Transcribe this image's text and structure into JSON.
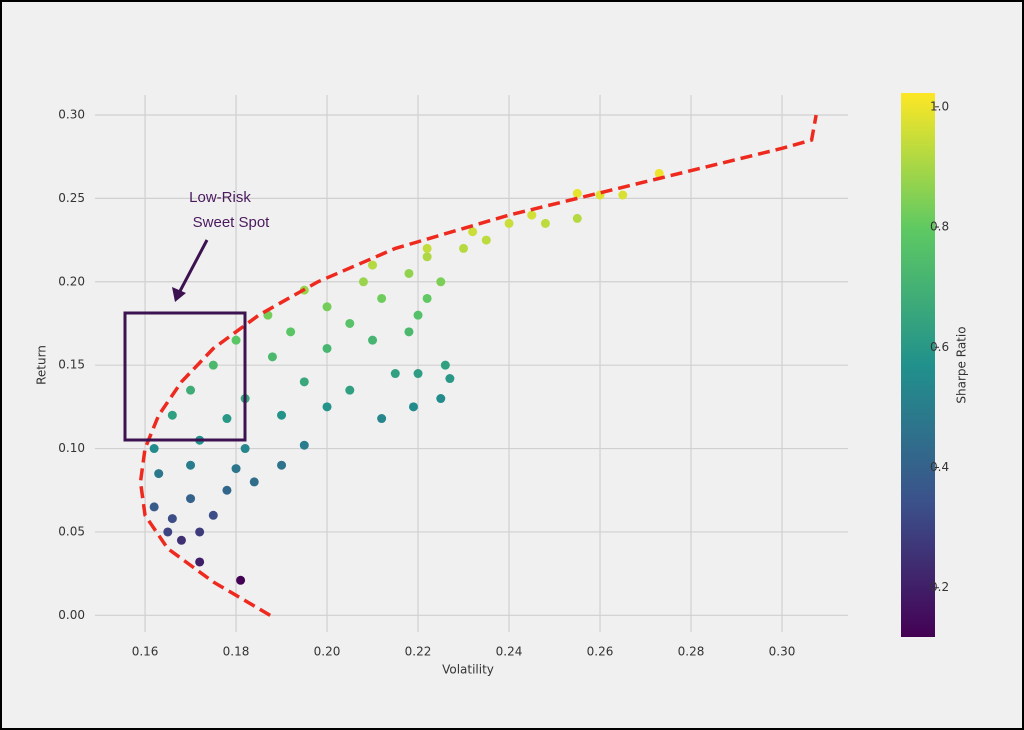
{
  "chart_data": {
    "type": "scatter",
    "xlabel": "Volatility",
    "ylabel": "Return",
    "x": [
      0.181,
      0.172,
      0.168,
      0.165,
      0.172,
      0.166,
      0.175,
      0.162,
      0.17,
      0.178,
      0.184,
      0.163,
      0.17,
      0.18,
      0.19,
      0.162,
      0.172,
      0.182,
      0.195,
      0.166,
      0.178,
      0.19,
      0.2,
      0.212,
      0.17,
      0.182,
      0.195,
      0.205,
      0.215,
      0.219,
      0.225,
      0.227,
      0.175,
      0.188,
      0.2,
      0.21,
      0.22,
      0.226,
      0.18,
      0.192,
      0.205,
      0.218,
      0.22,
      0.187,
      0.2,
      0.212,
      0.222,
      0.195,
      0.208,
      0.218,
      0.225,
      0.21,
      0.222,
      0.23,
      0.222,
      0.232,
      0.24,
      0.245,
      0.235,
      0.248,
      0.255,
      0.255,
      0.26,
      0.265,
      0.273
    ],
    "values": [
      0.021,
      0.032,
      0.045,
      0.05,
      0.05,
      0.058,
      0.06,
      0.065,
      0.07,
      0.075,
      0.08,
      0.085,
      0.09,
      0.088,
      0.09,
      0.1,
      0.105,
      0.1,
      0.102,
      0.12,
      0.118,
      0.12,
      0.125,
      0.118,
      0.135,
      0.13,
      0.14,
      0.135,
      0.145,
      0.125,
      0.13,
      0.142,
      0.15,
      0.155,
      0.16,
      0.165,
      0.145,
      0.15,
      0.165,
      0.17,
      0.175,
      0.17,
      0.18,
      0.18,
      0.185,
      0.19,
      0.19,
      0.195,
      0.2,
      0.205,
      0.2,
      0.21,
      0.215,
      0.22,
      0.22,
      0.23,
      0.235,
      0.24,
      0.225,
      0.235,
      0.238,
      0.253,
      0.252,
      0.252,
      0.265
    ],
    "sharpe": [
      0.12,
      0.2,
      0.25,
      0.3,
      0.28,
      0.33,
      0.33,
      0.38,
      0.4,
      0.42,
      0.44,
      0.48,
      0.5,
      0.47,
      0.46,
      0.55,
      0.57,
      0.53,
      0.5,
      0.63,
      0.6,
      0.58,
      0.58,
      0.53,
      0.68,
      0.65,
      0.66,
      0.63,
      0.63,
      0.55,
      0.55,
      0.6,
      0.73,
      0.73,
      0.72,
      0.71,
      0.62,
      0.63,
      0.78,
      0.78,
      0.77,
      0.73,
      0.76,
      0.83,
      0.83,
      0.82,
      0.8,
      0.88,
      0.88,
      0.87,
      0.84,
      0.92,
      0.91,
      0.92,
      0.94,
      0.95,
      0.95,
      0.96,
      0.93,
      0.93,
      0.92,
      0.99,
      0.98,
      0.97,
      1.0
    ],
    "line": {
      "color": "#ee2a1f",
      "x": [
        0.1875,
        0.175,
        0.165,
        0.16,
        0.159,
        0.16,
        0.163,
        0.168,
        0.175,
        0.185,
        0.198,
        0.215,
        0.24,
        0.27,
        0.3,
        0.3065,
        0.3075
      ],
      "values": [
        0.0,
        0.02,
        0.04,
        0.06,
        0.08,
        0.1,
        0.12,
        0.14,
        0.16,
        0.18,
        0.2,
        0.22,
        0.24,
        0.26,
        0.28,
        0.285,
        0.3
      ]
    },
    "xlim": [
      0.149,
      0.3145
    ],
    "ylim": [
      -0.01,
      0.312
    ],
    "xticks": [
      0.16,
      0.18,
      {
        "value": 0.2,
        "label": "0.20"
      },
      0.22,
      0.24,
      0.26,
      0.28,
      {
        "value": 0.3,
        "label": "0.30"
      }
    ],
    "yticks": [
      {
        "value": 0,
        "label": "0.00"
      },
      0.05,
      {
        "value": 0.1,
        "label": "0.10"
      },
      0.15,
      {
        "value": 0.2,
        "label": "0.20"
      },
      0.25,
      {
        "value": 0.3,
        "label": "0.30"
      }
    ],
    "grid": true,
    "colorbar": {
      "label": "Sharpe Ratio",
      "lim": [
        0.118,
        1.023
      ],
      "ticks": [
        0.2,
        0.4,
        0.6,
        0.8,
        {
          "value": 1,
          "label": "1.0"
        }
      ]
    },
    "annotation": [
      "Low-Risk",
      "Sweet Spot"
    ]
  }
}
